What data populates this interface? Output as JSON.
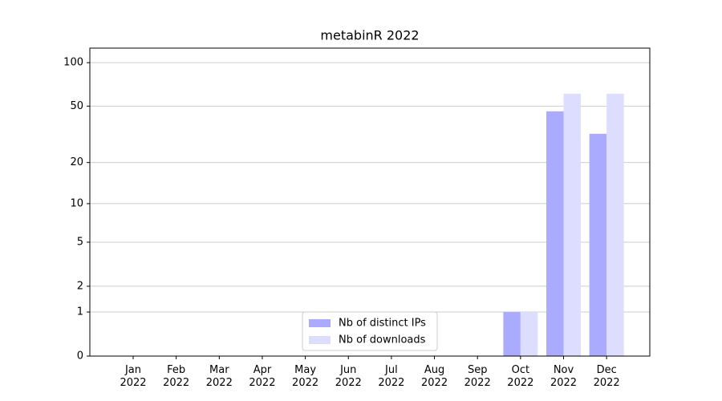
{
  "chart_data": {
    "type": "bar",
    "title": "metabinR 2022",
    "categories": [
      "Jan 2022",
      "Feb 2022",
      "Mar 2022",
      "Apr 2022",
      "May 2022",
      "Jun 2022",
      "Jul 2022",
      "Aug 2022",
      "Sep 2022",
      "Oct 2022",
      "Nov 2022",
      "Dec 2022"
    ],
    "series": [
      {
        "name": "Nb of distinct IPs",
        "color": "#aaaaff",
        "values": [
          0,
          0,
          0,
          0,
          0,
          0,
          0,
          0,
          0,
          1,
          46,
          32
        ]
      },
      {
        "name": "Nb of downloads",
        "color": "#ddddff",
        "values": [
          0,
          0,
          0,
          0,
          0,
          0,
          0,
          0,
          0,
          1,
          61,
          61
        ]
      }
    ],
    "yscale": "log1p",
    "ylim": [
      0,
      126
    ],
    "yticks": [
      0,
      1,
      2,
      5,
      10,
      20,
      50,
      100
    ],
    "grid": true,
    "legend": "lower center"
  }
}
